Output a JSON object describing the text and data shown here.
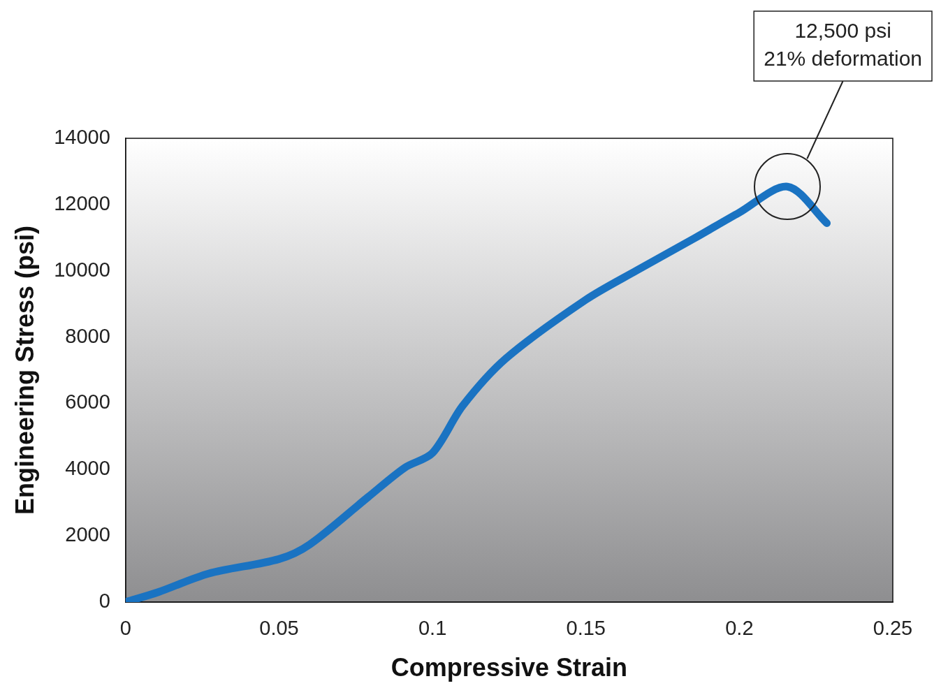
{
  "chart_data": {
    "type": "line",
    "xlabel": "Compressive Strain",
    "ylabel": "Engineering Stress (psi)",
    "x": [
      0,
      0.0106,
      0.027,
      0.05,
      0.06,
      0.079,
      0.091,
      0.1,
      0.1098,
      0.124,
      0.15,
      0.1665,
      0.1855,
      0.2,
      0.2157,
      0.2285
    ],
    "series": [
      {
        "color": "#1a73c2",
        "values": [
          0,
          300,
          860,
          1300,
          1740,
          3170,
          4060,
          4500,
          5920,
          7360,
          9130,
          10010,
          10990,
          11760,
          12540,
          11440
        ]
      }
    ],
    "xlim": [
      0,
      0.25
    ],
    "xticks": [
      0,
      0.05,
      0.1,
      0.15,
      0.2,
      0.25
    ],
    "ylim": [
      0,
      14000
    ],
    "yticks": [
      0,
      2000,
      4000,
      6000,
      8000,
      10000,
      12000,
      14000
    ],
    "grid": false,
    "legend": false,
    "marker": "none",
    "line_style": "solid",
    "annotations": [
      "12,500 psi\n21% deformation"
    ]
  }
}
